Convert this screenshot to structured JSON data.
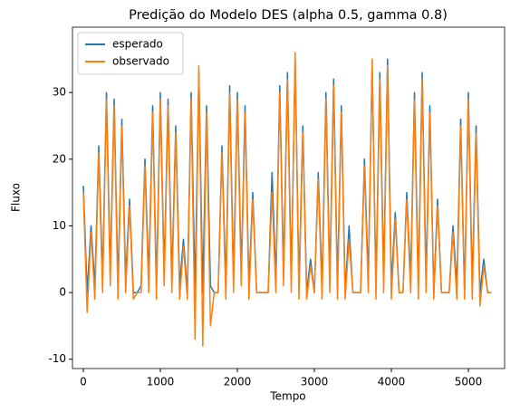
{
  "chart_data": {
    "type": "line",
    "title": "Predição do Modelo DES (alpha 0.5, gamma 0.8)",
    "x_label": "Tempo",
    "y_label": "Fluxo",
    "x": [
      0,
      50,
      100,
      150,
      200,
      250,
      300,
      350,
      400,
      450,
      500,
      550,
      600,
      650,
      700,
      750,
      800,
      850,
      900,
      950,
      1000,
      1050,
      1100,
      1150,
      1200,
      1250,
      1300,
      1350,
      1400,
      1450,
      1500,
      1550,
      1600,
      1650,
      1700,
      1750,
      1800,
      1850,
      1900,
      1950,
      2000,
      2050,
      2100,
      2150,
      2200,
      2250,
      2300,
      2350,
      2400,
      2450,
      2500,
      2550,
      2600,
      2650,
      2700,
      2750,
      2800,
      2850,
      2900,
      2950,
      3000,
      3050,
      3100,
      3150,
      3200,
      3250,
      3300,
      3350,
      3400,
      3450,
      3500,
      3550,
      3600,
      3650,
      3700,
      3750,
      3800,
      3850,
      3900,
      3950,
      4000,
      4050,
      4100,
      4150,
      4200,
      4250,
      4300,
      4350,
      4400,
      4450,
      4500,
      4550,
      4600,
      4650,
      4700,
      4750,
      4800,
      4850,
      4900,
      4950,
      5000,
      5050,
      5100,
      5150,
      5200,
      5250,
      5300
    ],
    "series": [
      {
        "name": "esperado",
        "color": "#1f77b4",
        "values": [
          16,
          0,
          10,
          1,
          22,
          2,
          30,
          3,
          29,
          1,
          26,
          2,
          14,
          0,
          0,
          1,
          20,
          2,
          28,
          1,
          30,
          3,
          29,
          2,
          25,
          1,
          8,
          0,
          30,
          0,
          33,
          0,
          28,
          1,
          0,
          0,
          22,
          1,
          31,
          2,
          30,
          3,
          28,
          1,
          15,
          0,
          0,
          0,
          0,
          18,
          2,
          31,
          3,
          33,
          2,
          35,
          1,
          25,
          0,
          5,
          0,
          18,
          1,
          30,
          2,
          32,
          1,
          28,
          0,
          10,
          0,
          0,
          0,
          20,
          2,
          34,
          1,
          33,
          2,
          35,
          1,
          12,
          0,
          0,
          15,
          2,
          30,
          1,
          33,
          2,
          28,
          0,
          14,
          0,
          0,
          0,
          10,
          1,
          26,
          0,
          30,
          1,
          25,
          0,
          5,
          0,
          0
        ]
      },
      {
        "name": "observado",
        "color": "#ff7f0e",
        "values": [
          15,
          -3,
          9,
          -1,
          21,
          0,
          29,
          1,
          28,
          -1,
          25,
          0,
          13,
          -1,
          0,
          0,
          19,
          0,
          27,
          -1,
          29,
          1,
          28,
          0,
          24,
          -1,
          7,
          -1,
          29,
          -7,
          34,
          -8,
          27,
          -5,
          0,
          0,
          21,
          -1,
          30,
          0,
          29,
          1,
          27,
          -1,
          14,
          0,
          0,
          0,
          0,
          15,
          0,
          30,
          1,
          32,
          0,
          36,
          -1,
          24,
          -1,
          4,
          0,
          17,
          -1,
          29,
          0,
          31,
          -1,
          27,
          -1,
          8,
          0,
          0,
          0,
          19,
          0,
          35,
          -1,
          32,
          0,
          34,
          -1,
          11,
          0,
          0,
          14,
          0,
          29,
          -1,
          32,
          0,
          27,
          -1,
          13,
          0,
          0,
          0,
          9,
          -1,
          25,
          -1,
          29,
          -1,
          24,
          -2,
          4,
          0,
          0
        ]
      }
    ],
    "xlim": [
      -141,
      5470
    ],
    "xticks": [
      0,
      1000,
      2000,
      3000,
      4000,
      5000
    ],
    "ylim": [
      -11.4,
      39.8
    ],
    "yticks": [
      -10,
      0,
      10,
      20,
      30
    ],
    "legend": "upper left"
  }
}
